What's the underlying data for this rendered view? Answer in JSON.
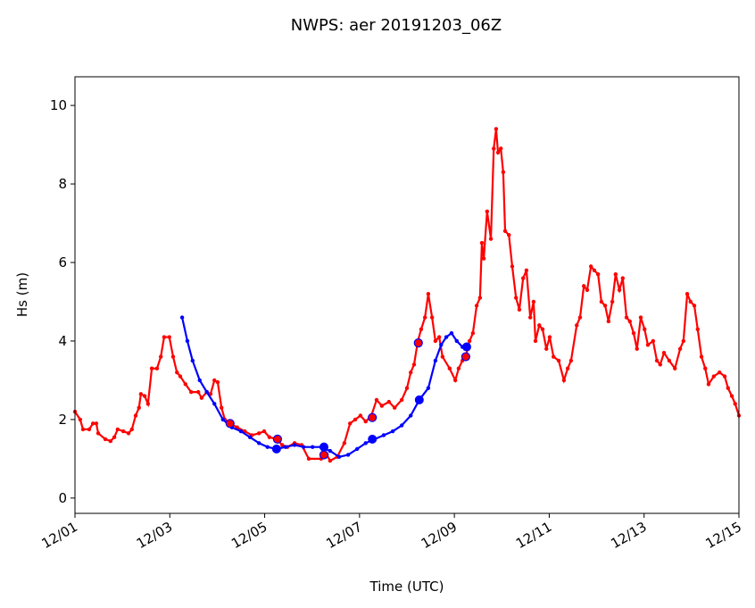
{
  "chart_data": {
    "type": "line",
    "title": "NWPS: aer 20191203_06Z",
    "xlabel": "Time (UTC)",
    "ylabel": "Hs (m)",
    "xlim": [
      0,
      14
    ],
    "ylim": [
      -0.39,
      10.73
    ],
    "xticks": [
      {
        "value": 0,
        "label": "12/01"
      },
      {
        "value": 2,
        "label": "12/03"
      },
      {
        "value": 4,
        "label": "12/05"
      },
      {
        "value": 6,
        "label": "12/07"
      },
      {
        "value": 8,
        "label": "12/09"
      },
      {
        "value": 10,
        "label": "12/11"
      },
      {
        "value": 12,
        "label": "12/13"
      },
      {
        "value": 14,
        "label": "12/15"
      }
    ],
    "yticks": [
      0,
      2,
      4,
      6,
      8,
      10
    ],
    "grid": false,
    "series": [
      {
        "color": "#ff0000",
        "marker": "dot",
        "x": [
          0,
          0.11,
          0.17,
          0.3,
          0.38,
          0.45,
          0.49,
          0.64,
          0.75,
          0.83,
          0.9,
          1.02,
          1.13,
          1.2,
          1.28,
          1.35,
          1.39,
          1.47,
          1.54,
          1.62,
          1.73,
          1.81,
          1.88,
          1.99,
          2.07,
          2.15,
          2.22,
          2.33,
          2.45,
          2.6,
          2.67,
          2.78,
          2.86,
          2.94,
          3.01,
          3.09,
          3.16,
          3.27,
          3.42,
          3.58,
          3.73,
          3.88,
          3.99,
          4.1,
          4.25,
          4.37,
          4.48,
          4.63,
          4.78,
          4.93,
          5.19,
          5.31,
          5.38,
          5.53,
          5.68,
          5.8,
          5.91,
          6.02,
          6.13,
          6.25,
          6.36,
          6.47,
          6.62,
          6.74,
          6.89,
          7.0,
          7.08,
          7.15,
          7.23,
          7.3,
          7.38,
          7.45,
          7.53,
          7.6,
          7.68,
          7.75,
          7.9,
          8.02,
          8.09,
          8.17,
          8.24,
          8.32,
          8.39,
          8.47,
          8.54,
          8.58,
          8.62,
          8.69,
          8.77,
          8.83,
          8.88,
          8.92,
          8.98,
          9.03,
          9.07,
          9.15,
          9.22,
          9.3,
          9.37,
          9.45,
          9.52,
          9.6,
          9.67,
          9.71,
          9.79,
          9.86,
          9.94,
          10.01,
          10.09,
          10.2,
          10.31,
          10.39,
          10.46,
          10.58,
          10.65,
          10.73,
          10.8,
          10.88,
          10.95,
          11.03,
          11.1,
          11.18,
          11.25,
          11.33,
          11.4,
          11.48,
          11.55,
          11.63,
          11.7,
          11.78,
          11.85,
          11.93,
          12.01,
          12.08,
          12.19,
          12.27,
          12.34,
          12.42,
          12.53,
          12.65,
          12.76,
          12.83,
          12.91,
          12.98,
          13.06,
          13.13,
          13.21,
          13.29,
          13.36,
          13.47,
          13.59,
          13.7,
          13.77,
          13.85,
          13.92,
          14.0
        ],
        "values": [
          2.2,
          2.0,
          1.75,
          1.75,
          1.9,
          1.9,
          1.65,
          1.5,
          1.45,
          1.55,
          1.75,
          1.7,
          1.65,
          1.75,
          2.1,
          2.3,
          2.65,
          2.6,
          2.4,
          3.3,
          3.3,
          3.6,
          4.1,
          4.1,
          3.6,
          3.2,
          3.1,
          2.9,
          2.7,
          2.7,
          2.55,
          2.7,
          2.65,
          3.0,
          2.95,
          2.3,
          2.0,
          1.9,
          1.8,
          1.7,
          1.6,
          1.65,
          1.7,
          1.55,
          1.5,
          1.35,
          1.3,
          1.4,
          1.35,
          1.0,
          1.0,
          1.1,
          0.95,
          1.05,
          1.4,
          1.9,
          2.0,
          2.1,
          1.95,
          2.1,
          2.5,
          2.35,
          2.45,
          2.3,
          2.5,
          2.8,
          3.2,
          3.4,
          4.0,
          4.3,
          4.6,
          5.2,
          4.6,
          4.0,
          4.1,
          3.6,
          3.3,
          3.0,
          3.3,
          3.5,
          3.6,
          4.0,
          4.2,
          4.9,
          5.1,
          6.5,
          6.1,
          7.3,
          6.6,
          8.9,
          9.4,
          8.8,
          8.9,
          8.3,
          6.8,
          6.7,
          5.9,
          5.1,
          4.8,
          5.6,
          5.8,
          4.6,
          5.0,
          4.0,
          4.4,
          4.3,
          3.8,
          4.1,
          3.6,
          3.5,
          3.0,
          3.3,
          3.5,
          4.4,
          4.6,
          5.4,
          5.3,
          5.9,
          5.8,
          5.7,
          5.0,
          4.9,
          4.5,
          5.0,
          5.7,
          5.3,
          5.6,
          4.6,
          4.5,
          4.2,
          3.8,
          4.6,
          4.3,
          3.9,
          4.0,
          3.5,
          3.4,
          3.7,
          3.5,
          3.3,
          3.8,
          4.0,
          5.2,
          5.0,
          4.9,
          4.3,
          3.6,
          3.3,
          2.9,
          3.1,
          3.2,
          3.1,
          2.8,
          2.6,
          2.4,
          2.1
        ]
      },
      {
        "color": "#0000ff",
        "marker": "dot",
        "x": [
          2.26,
          2.37,
          2.48,
          2.63,
          2.78,
          2.94,
          3.12,
          3.31,
          3.5,
          3.69,
          3.88,
          4.06,
          4.25,
          4.44,
          4.63,
          4.82,
          5.01,
          5.19,
          5.38,
          5.57,
          5.76,
          5.95,
          6.13,
          6.32,
          6.51,
          6.7,
          6.89,
          7.08,
          7.26,
          7.45,
          7.6,
          7.72,
          7.83,
          7.94,
          8.05,
          8.17,
          8.28
        ],
        "values": [
          4.6,
          4.0,
          3.5,
          3.0,
          2.7,
          2.4,
          2.0,
          1.8,
          1.7,
          1.55,
          1.4,
          1.3,
          1.25,
          1.3,
          1.35,
          1.3,
          1.3,
          1.3,
          1.2,
          1.05,
          1.1,
          1.25,
          1.4,
          1.5,
          1.6,
          1.7,
          1.85,
          2.1,
          2.5,
          2.8,
          3.5,
          3.9,
          4.1,
          4.2,
          4.0,
          3.85,
          3.8
        ]
      },
      {
        "color": "#0000ff",
        "marker": "big",
        "x": [
          4.25,
          5.25,
          6.27,
          7.26,
          8.26
        ],
        "values": [
          1.25,
          1.3,
          1.5,
          2.5,
          3.85
        ]
      },
      {
        "color": "#ff0000",
        "edge": "#0000ff",
        "marker": "ring",
        "x": [
          3.27,
          4.27,
          5.25,
          6.27,
          7.24,
          8.24
        ],
        "values": [
          1.9,
          1.5,
          1.1,
          2.05,
          3.95,
          3.6
        ]
      }
    ]
  }
}
